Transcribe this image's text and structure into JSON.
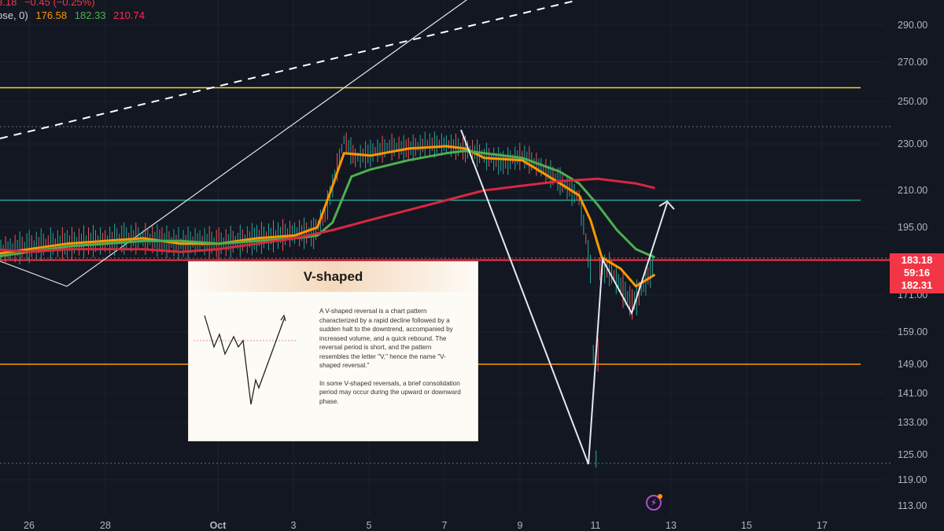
{
  "legend": {
    "price": "3.18",
    "change": "−0.45 (−0.25%)",
    "ma_label": "ose, 0)",
    "ma1": "176.58",
    "ma2": "182.33",
    "ma3": "210.74"
  },
  "info_card": {
    "title": "V-shaped",
    "paragraph1": "A V-shaped reversal is a chart pattern characterized by a rapid decline followed by a sudden halt to the downtrend, accompanied by increased volume, and a quick rebound. The reversal period is short, and the pattern resembles the letter \"V,\" hence the name \"V-shaped reversal.\"",
    "paragraph2": "In some V-shaped reversals, a brief consolidation period may occur during the upward or downward phase."
  },
  "price_tag": {
    "last_price": "183.18",
    "countdown": "59:16",
    "second_price": "182.31"
  },
  "colors": {
    "background": "#131722",
    "price_tag": "#f23645",
    "ma_fast": "#ff9800",
    "ma_mid": "#4caf50",
    "ma_slow": "#d8283f",
    "level_yellow": "#e6d72a",
    "level_teal": "#26a69a",
    "level_orange": "#ff9800",
    "level_red": "#f23645"
  },
  "chart_data": {
    "type": "line",
    "y_axis_ticks": [
      "290.00",
      "270.00",
      "250.00",
      "230.00",
      "210.00",
      "195.00",
      "183.18",
      "171.00",
      "159.00",
      "149.00",
      "141.00",
      "133.00",
      "125.00",
      "119.00",
      "113.00"
    ],
    "x_axis_ticks": [
      "26",
      "28",
      "Oct",
      "3",
      "5",
      "7",
      "9",
      "11",
      "13",
      "15",
      "17"
    ],
    "horizontal_levels": [
      {
        "value": 257,
        "color": "#e6d72a"
      },
      {
        "value": 206,
        "color": "#26a69a"
      },
      {
        "value": 183,
        "color": "#f23645"
      },
      {
        "value": 149,
        "color": "#ff9800"
      }
    ],
    "series": [
      {
        "color": "#e04a3a",
        "points": [
          [
            25,
            186
          ],
          [
            25.5,
            187
          ],
          [
            26,
            188
          ],
          [
            26.5,
            189
          ],
          [
            27,
            189
          ],
          [
            27.5,
            190
          ],
          [
            28,
            190
          ],
          [
            28.5,
            191
          ],
          [
            29,
            191
          ],
          [
            29.5,
            190
          ],
          [
            30,
            189
          ],
          [
            30.5,
            190
          ],
          [
            1,
            189
          ],
          [
            1.5,
            190
          ],
          [
            2,
            191
          ],
          [
            2.5,
            192
          ],
          [
            3,
            193
          ],
          [
            3.5,
            193
          ],
          [
            3.8,
            200
          ],
          [
            4,
            212
          ],
          [
            4.3,
            232
          ],
          [
            4.6,
            224
          ],
          [
            5,
            226
          ],
          [
            5.5,
            229
          ],
          [
            6,
            228
          ],
          [
            6.5,
            230
          ],
          [
            7,
            230
          ],
          [
            7.5,
            228
          ],
          [
            8,
            225
          ],
          [
            8.5,
            222
          ],
          [
            9,
            225
          ],
          [
            9.5,
            220
          ],
          [
            10,
            214
          ],
          [
            10.5,
            207
          ],
          [
            10.8,
            180
          ],
          [
            10.95,
            124
          ],
          [
            11.05,
            180
          ],
          [
            11.3,
            180
          ],
          [
            11.6,
            174
          ],
          [
            11.9,
            168
          ],
          [
            12.2,
            174
          ],
          [
            12.5,
            183
          ]
        ]
      },
      {
        "color": "#ff9800",
        "points": [
          [
            25,
            185
          ],
          [
            26,
            187
          ],
          [
            27,
            189
          ],
          [
            28,
            190
          ],
          [
            29,
            191
          ],
          [
            30,
            189
          ],
          [
            1,
            189
          ],
          [
            2,
            191
          ],
          [
            3,
            192
          ],
          [
            3.6,
            195
          ],
          [
            4,
            212
          ],
          [
            4.3,
            226
          ],
          [
            5,
            225
          ],
          [
            6,
            228
          ],
          [
            7,
            229
          ],
          [
            7.5,
            228
          ],
          [
            8,
            224
          ],
          [
            9,
            223
          ],
          [
            10,
            213
          ],
          [
            10.5,
            208
          ],
          [
            10.8,
            198
          ],
          [
            11.1,
            184
          ],
          [
            11.6,
            180
          ],
          [
            12,
            174
          ],
          [
            12.5,
            178
          ]
        ]
      },
      {
        "color": "#4caf50",
        "points": [
          [
            25,
            184
          ],
          [
            26,
            186
          ],
          [
            27,
            188
          ],
          [
            28,
            189
          ],
          [
            29,
            190
          ],
          [
            30,
            190
          ],
          [
            1,
            189
          ],
          [
            2,
            190
          ],
          [
            3,
            191
          ],
          [
            3.6,
            192
          ],
          [
            4,
            197
          ],
          [
            4.5,
            216
          ],
          [
            5,
            219
          ],
          [
            6,
            223
          ],
          [
            7,
            226
          ],
          [
            7.5,
            227
          ],
          [
            8,
            226
          ],
          [
            9,
            224
          ],
          [
            10,
            218
          ],
          [
            10.5,
            213
          ],
          [
            11,
            204
          ],
          [
            11.5,
            194
          ],
          [
            12,
            187
          ],
          [
            12.5,
            184
          ]
        ]
      },
      {
        "color": "#d8283f",
        "points": [
          [
            25,
            187
          ],
          [
            26,
            186
          ],
          [
            27,
            187
          ],
          [
            28,
            187
          ],
          [
            29,
            187
          ],
          [
            30,
            186
          ],
          [
            1,
            187
          ],
          [
            2,
            189
          ],
          [
            3,
            191
          ],
          [
            4,
            194
          ],
          [
            5,
            198
          ],
          [
            6,
            202
          ],
          [
            7,
            206
          ],
          [
            8,
            210
          ],
          [
            9,
            212
          ],
          [
            10,
            214
          ],
          [
            11,
            215
          ],
          [
            12,
            213
          ],
          [
            12.5,
            211
          ]
        ]
      }
    ]
  }
}
